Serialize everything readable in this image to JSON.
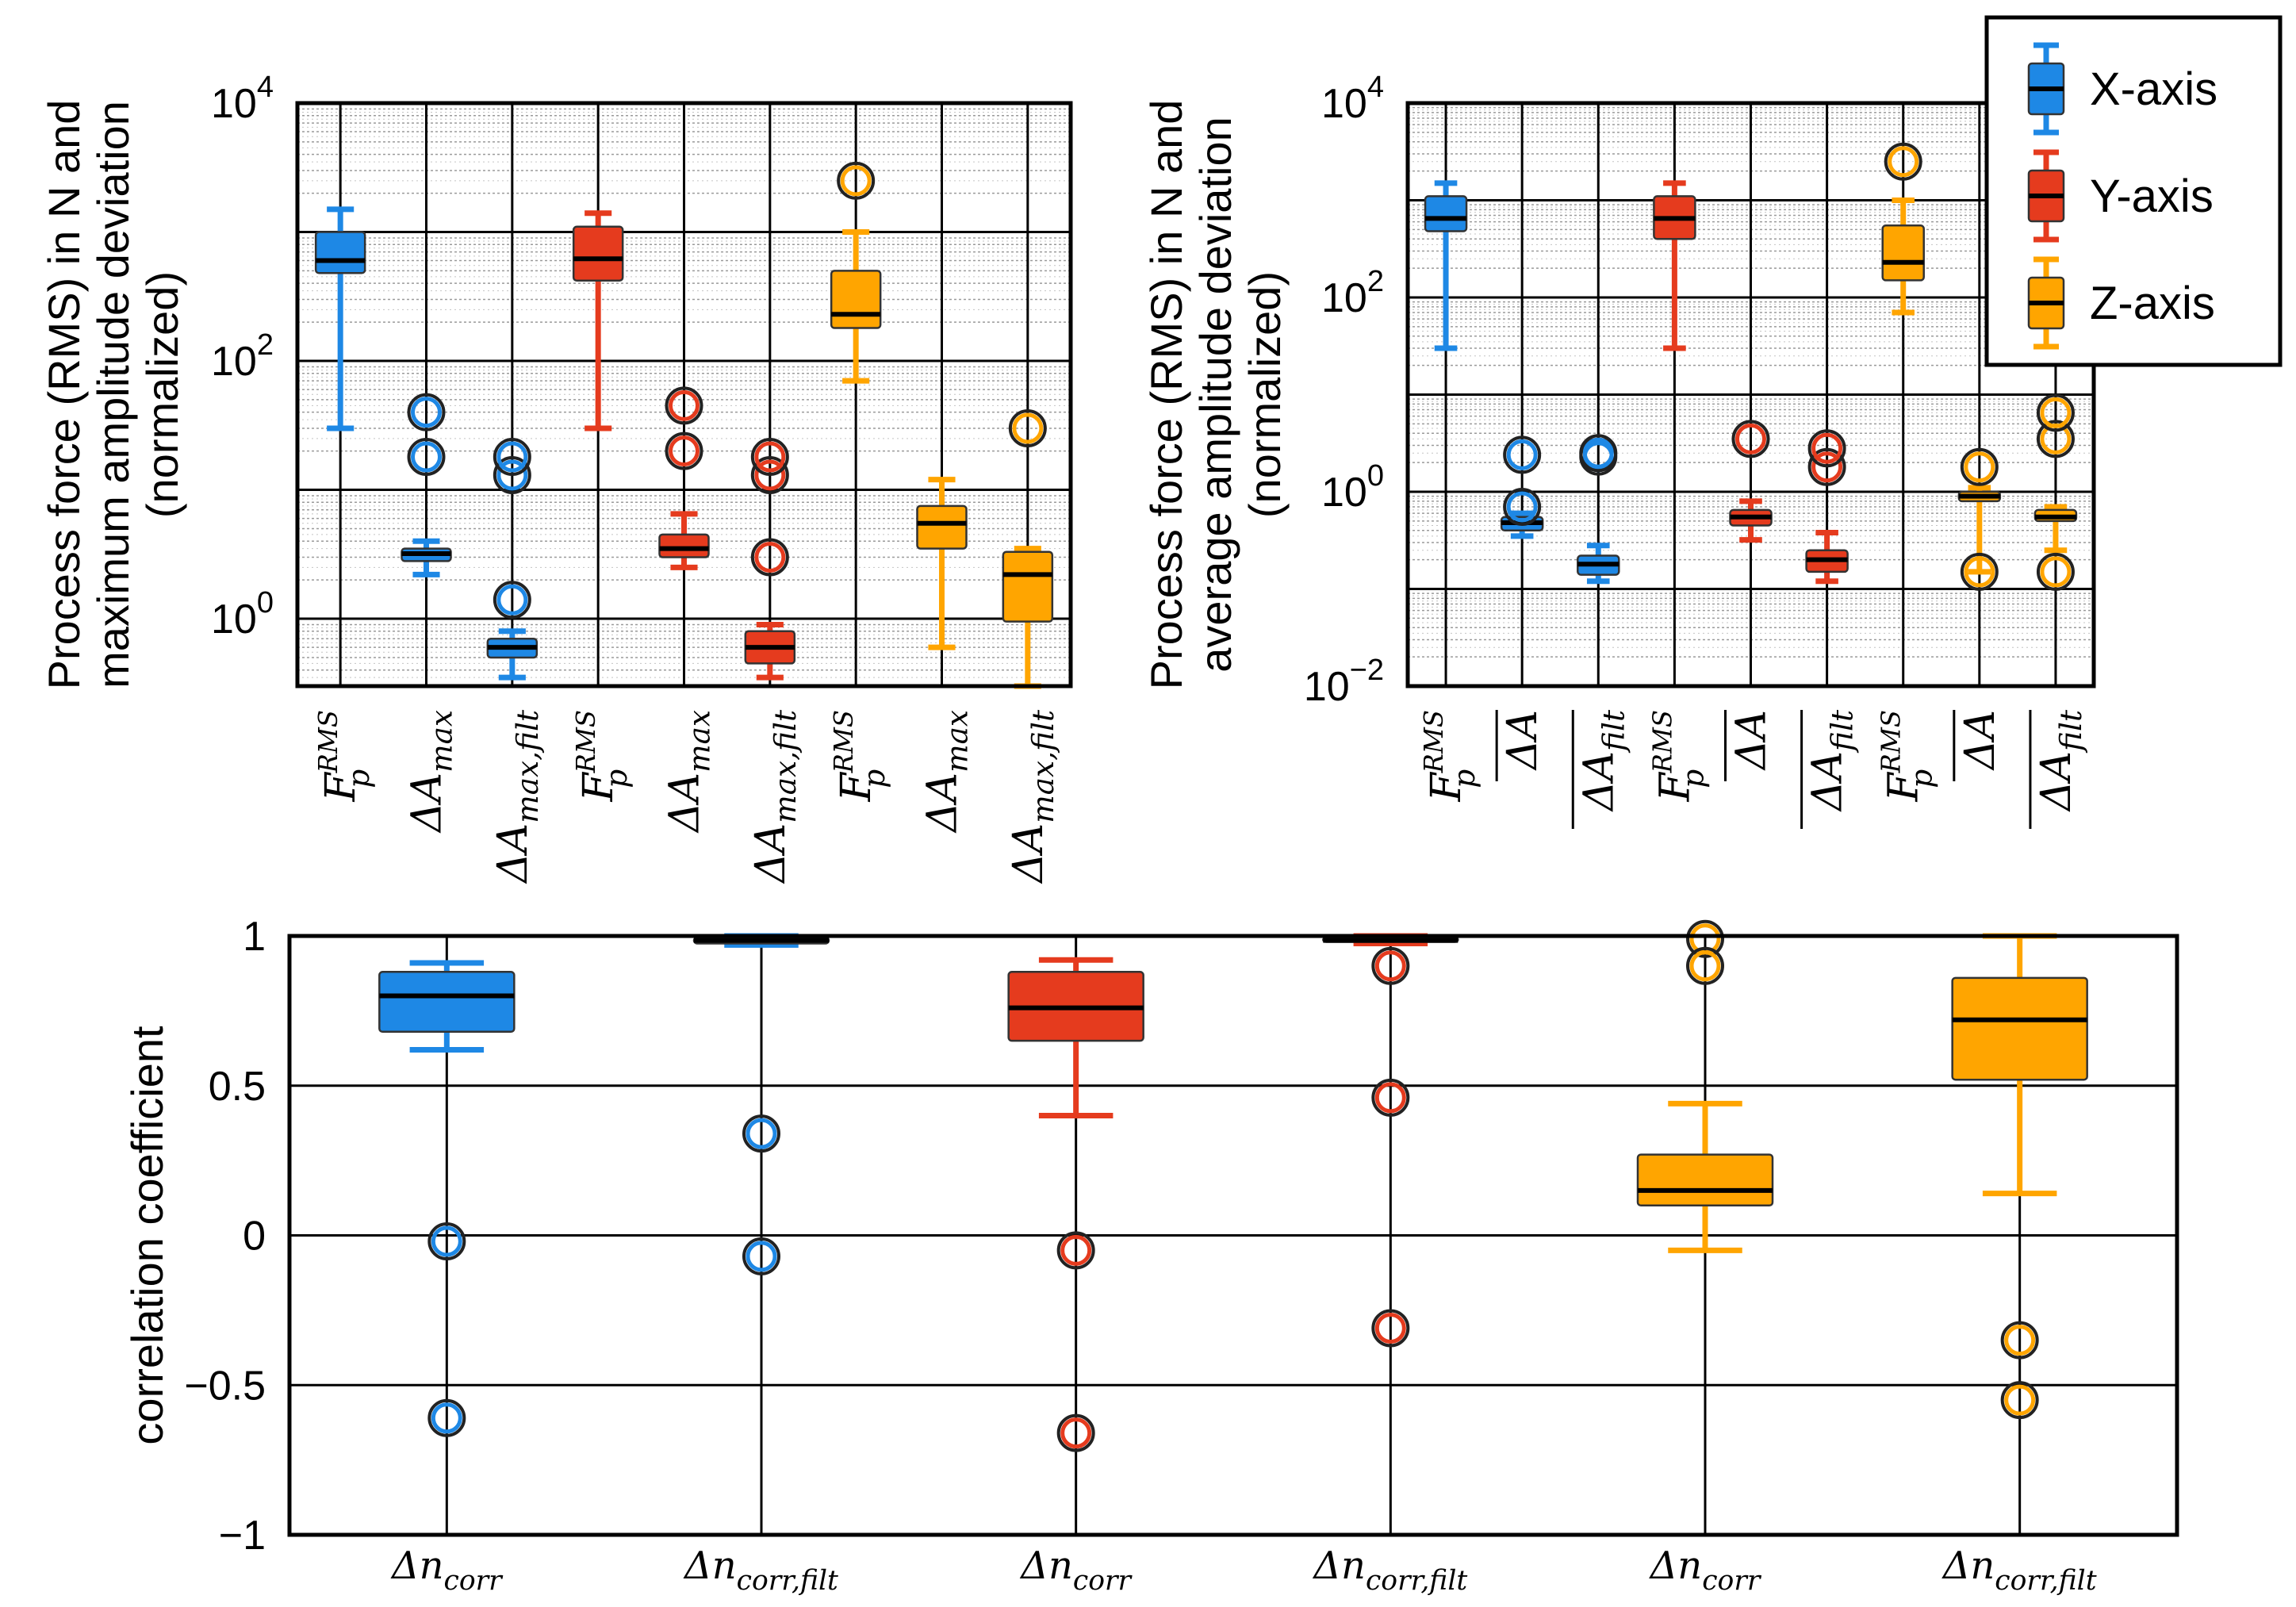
{
  "colors": {
    "x": "#1E88E5",
    "y": "#E53B1E",
    "z": "#FFA500"
  },
  "legend": [
    {
      "key": "x",
      "label": "X-axis"
    },
    {
      "key": "y",
      "label": "Y-axis"
    },
    {
      "key": "z",
      "label": "Z-axis"
    }
  ],
  "chart_data": [
    {
      "type": "box",
      "panel": "top-left",
      "ylabel_lines": [
        "Process force (RMS) in N and",
        "maximum amplitude deviation",
        "(normalized)"
      ],
      "yscale": "log",
      "ylim": [
        0.3,
        10000
      ],
      "yticks": [
        {
          "value": 1,
          "base": "10",
          "exp": "0"
        },
        {
          "value": 100,
          "base": "10",
          "exp": "2"
        },
        {
          "value": 10000,
          "base": "10",
          "exp": "4"
        }
      ],
      "categories": [
        {
          "main": "F",
          "sub": "p",
          "sup": "RMS"
        },
        {
          "main": "ΔA",
          "sub": "max"
        },
        {
          "main": "ΔA",
          "sub": "max,filt"
        },
        {
          "main": "F",
          "sub": "p",
          "sup": "RMS"
        },
        {
          "main": "ΔA",
          "sub": "max"
        },
        {
          "main": "ΔA",
          "sub": "max,filt"
        },
        {
          "main": "F",
          "sub": "p",
          "sup": "RMS"
        },
        {
          "main": "ΔA",
          "sub": "max"
        },
        {
          "main": "ΔA",
          "sub": "max,filt"
        }
      ],
      "boxes": [
        {
          "axis": "x",
          "wlo": 30,
          "q1": 480,
          "med": 600,
          "q3": 1000,
          "whi": 1500,
          "outliers": []
        },
        {
          "axis": "x",
          "wlo": 2.2,
          "q1": 2.8,
          "med": 3.2,
          "q3": 3.5,
          "whi": 4,
          "outliers": [
            18,
            40
          ]
        },
        {
          "axis": "x",
          "wlo": 0.35,
          "q1": 0.5,
          "med": 0.6,
          "q3": 0.7,
          "whi": 0.8,
          "outliers": [
            1.4,
            13,
            18
          ]
        },
        {
          "axis": "y",
          "wlo": 30,
          "q1": 420,
          "med": 620,
          "q3": 1100,
          "whi": 1400,
          "outliers": []
        },
        {
          "axis": "y",
          "wlo": 2.5,
          "q1": 3,
          "med": 3.5,
          "q3": 4.5,
          "whi": 6.5,
          "outliers": [
            20,
            45
          ]
        },
        {
          "axis": "y",
          "wlo": 0.35,
          "q1": 0.45,
          "med": 0.6,
          "q3": 0.8,
          "whi": 0.9,
          "outliers": [
            3,
            13,
            18
          ]
        },
        {
          "axis": "z",
          "wlo": 70,
          "q1": 180,
          "med": 230,
          "q3": 500,
          "whi": 1000,
          "outliers": [
            2500
          ]
        },
        {
          "axis": "z",
          "wlo": 0.6,
          "q1": 3.5,
          "med": 5.5,
          "q3": 7.5,
          "whi": 12,
          "outliers": []
        },
        {
          "axis": "z",
          "wlo": 0.3,
          "q1": 0.95,
          "med": 2.2,
          "q3": 3.3,
          "whi": 3.5,
          "outliers": [
            30
          ]
        }
      ]
    },
    {
      "type": "box",
      "panel": "top-right",
      "ylabel_lines": [
        "Process force (RMS) in N and",
        "average amplitude deviation",
        "(normalized)"
      ],
      "yscale": "log",
      "ylim": [
        0.01,
        10000
      ],
      "yticks": [
        {
          "value": 0.01,
          "base": "10",
          "exp": "−2"
        },
        {
          "value": 1,
          "base": "10",
          "exp": "0"
        },
        {
          "value": 100,
          "base": "10",
          "exp": "2"
        },
        {
          "value": 10000,
          "base": "10",
          "exp": "4"
        }
      ],
      "categories": [
        {
          "main": "F",
          "sub": "p",
          "sup": "RMS"
        },
        {
          "main": "ΔA",
          "sub": "",
          "bar": true
        },
        {
          "main": "ΔA",
          "sub": "filt",
          "bar": true
        },
        {
          "main": "F",
          "sub": "p",
          "sup": "RMS"
        },
        {
          "main": "ΔA",
          "sub": "",
          "bar": true
        },
        {
          "main": "ΔA",
          "sub": "filt",
          "bar": true
        },
        {
          "main": "F",
          "sub": "p",
          "sup": "RMS"
        },
        {
          "main": "ΔA",
          "sub": "",
          "bar": true
        },
        {
          "main": "ΔA",
          "sub": "filt",
          "bar": true
        }
      ],
      "boxes": [
        {
          "axis": "x",
          "wlo": 30,
          "q1": 480,
          "med": 650,
          "q3": 1100,
          "whi": 1500,
          "outliers": []
        },
        {
          "axis": "x",
          "wlo": 0.35,
          "q1": 0.4,
          "med": 0.48,
          "q3": 0.55,
          "whi": 0.6,
          "outliers": [
            0.7,
            2.4
          ]
        },
        {
          "axis": "x",
          "wlo": 0.12,
          "q1": 0.14,
          "med": 0.18,
          "q3": 0.22,
          "whi": 0.28,
          "outliers": [
            2.3,
            2.5
          ]
        },
        {
          "axis": "y",
          "wlo": 30,
          "q1": 400,
          "med": 650,
          "q3": 1100,
          "whi": 1500,
          "outliers": []
        },
        {
          "axis": "y",
          "wlo": 0.32,
          "q1": 0.45,
          "med": 0.55,
          "q3": 0.65,
          "whi": 0.8,
          "outliers": [
            3.5
          ]
        },
        {
          "axis": "y",
          "wlo": 0.12,
          "q1": 0.15,
          "med": 0.2,
          "q3": 0.25,
          "whi": 0.38,
          "outliers": [
            1.8,
            2.8
          ]
        },
        {
          "axis": "z",
          "wlo": 70,
          "q1": 150,
          "med": 230,
          "q3": 550,
          "whi": 1000,
          "outliers": [
            2500
          ]
        },
        {
          "axis": "z",
          "wlo": 0.15,
          "q1": 0.8,
          "med": 0.9,
          "q3": 1,
          "whi": 1.1,
          "outliers": [
            0.15,
            1.8
          ]
        },
        {
          "axis": "z",
          "wlo": 0.25,
          "q1": 0.5,
          "med": 0.55,
          "q3": 0.65,
          "whi": 0.7,
          "outliers": [
            0.15,
            3.5,
            6.5
          ]
        }
      ]
    },
    {
      "type": "box",
      "panel": "bottom",
      "ylabel_lines": [
        "correlation coefficient"
      ],
      "yscale": "linear",
      "ylim": [
        -1,
        1
      ],
      "yticks": [
        {
          "value": 1,
          "label": "1"
        },
        {
          "value": 0.5,
          "label": "0.5"
        },
        {
          "value": 0,
          "label": "0"
        },
        {
          "value": -0.5,
          "label": "−0.5"
        },
        {
          "value": -1,
          "label": "−1"
        }
      ],
      "categories": [
        {
          "main": "Δn",
          "sub": "corr"
        },
        {
          "main": "Δn",
          "sub": "corr,filt"
        },
        {
          "main": "Δn",
          "sub": "corr"
        },
        {
          "main": "Δn",
          "sub": "corr,filt"
        },
        {
          "main": "Δn",
          "sub": "corr"
        },
        {
          "main": "Δn",
          "sub": "corr,filt"
        }
      ],
      "boxes": [
        {
          "axis": "x",
          "wlo": 0.62,
          "q1": 0.68,
          "med": 0.8,
          "q3": 0.88,
          "whi": 0.91,
          "outliers": [
            -0.02,
            -0.61
          ]
        },
        {
          "axis": "x",
          "wlo": 0.97,
          "q1": 0.975,
          "med": 0.985,
          "q3": 0.995,
          "whi": 1,
          "outliers": [
            0.34,
            -0.07
          ]
        },
        {
          "axis": "y",
          "wlo": 0.4,
          "q1": 0.65,
          "med": 0.76,
          "q3": 0.88,
          "whi": 0.92,
          "outliers": [
            -0.05,
            -0.66
          ]
        },
        {
          "axis": "y",
          "wlo": 0.975,
          "q1": 0.98,
          "med": 0.985,
          "q3": 0.995,
          "whi": 1,
          "outliers": [
            0.9,
            0.46,
            -0.31
          ]
        },
        {
          "axis": "z",
          "wlo": -0.05,
          "q1": 0.1,
          "med": 0.15,
          "q3": 0.27,
          "whi": 0.44,
          "outliers": [
            0.99,
            0.9
          ]
        },
        {
          "axis": "z",
          "wlo": 0.14,
          "q1": 0.52,
          "med": 0.72,
          "q3": 0.86,
          "whi": 1,
          "outliers": [
            -0.35,
            -0.55
          ]
        }
      ]
    }
  ]
}
